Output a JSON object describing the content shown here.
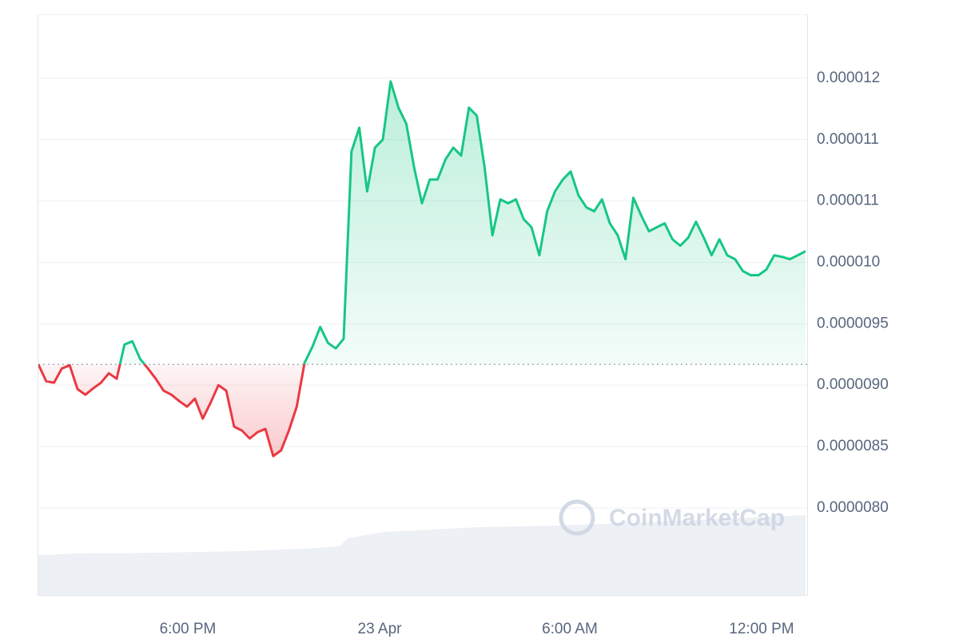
{
  "chart_data": {
    "type": "line",
    "watermark": "CoinMarketCap",
    "up_color": "#16c784",
    "down_color": "#ea3943",
    "grid": true,
    "xlim": [
      0,
      98
    ],
    "xticks": [
      {
        "value": 19.09,
        "label": "6:00 PM"
      },
      {
        "value": 43.59,
        "label": "23 Apr"
      },
      {
        "value": 67.88,
        "label": "6:00 AM"
      },
      {
        "value": 92.38,
        "label": "12:00 PM"
      }
    ],
    "ylim": [
      7.29e-06,
      1.202e-05
    ],
    "yticks": [
      {
        "value": 1.15e-05,
        "label": "0.000012"
      },
      {
        "value": 1.1e-05,
        "label": "0.000011"
      },
      {
        "value": 1.05e-05,
        "label": "0.000011"
      },
      {
        "value": 1e-05,
        "label": "0.000010"
      },
      {
        "value": 9.5e-06,
        "label": "0.0000095"
      },
      {
        "value": 9e-06,
        "label": "0.0000090"
      },
      {
        "value": 8.5e-06,
        "label": "0.0000085"
      },
      {
        "value": 8e-06,
        "label": "0.0000080"
      }
    ],
    "values": [
      9.169e-06,
      9.032e-06,
      9.02e-06,
      9.136e-06,
      9.162e-06,
      8.968e-06,
      8.922e-06,
      8.974e-06,
      9.02e-06,
      9.097e-06,
      9.052e-06,
      9.331e-06,
      9.357e-06,
      9.214e-06,
      9.136e-06,
      9.052e-06,
      8.955e-06,
      8.922e-06,
      8.87e-06,
      8.825e-06,
      8.89e-06,
      8.727e-06,
      8.857e-06,
      9e-06,
      8.955e-06,
      8.662e-06,
      8.63e-06,
      8.565e-06,
      8.617e-06,
      8.643e-06,
      8.422e-06,
      8.468e-06,
      8.63e-06,
      8.825e-06,
      9.182e-06,
      9.312e-06,
      9.474e-06,
      9.344e-06,
      9.299e-06,
      9.377e-06,
      1.0903e-05,
      1.1097e-05,
      1.0578e-05,
      1.0935e-05,
      1.1e-05,
      1.1474e-05,
      1.126e-05,
      1.113e-05,
      1.0773e-05,
      1.0481e-05,
      1.0675e-05,
      1.0675e-05,
      1.0838e-05,
      1.0935e-05,
      1.087e-05,
      1.126e-05,
      1.1195e-05,
      1.0773e-05,
      1.0221e-05,
      1.0513e-05,
      1.0481e-05,
      1.0513e-05,
      1.0351e-05,
      1.0286e-05,
      1.0058e-05,
      1.0416e-05,
      1.0578e-05,
      1.0675e-05,
      1.074e-05,
      1.0545e-05,
      1.0448e-05,
      1.0416e-05,
      1.0513e-05,
      1.0318e-05,
      1.0221e-05,
      1.0026e-05,
      1.0526e-05,
      1.0383e-05,
      1.0253e-05,
      1.0286e-05,
      1.0318e-05,
      1.0188e-05,
      1.0136e-05,
      1.0201e-05,
      1.0331e-05,
      1.0201e-05,
      1.0058e-05,
      1.0188e-05,
      1.0058e-05,
      1.0026e-05,
      9.929e-06,
      9.896e-06,
      9.896e-06,
      9.942e-06,
      1.0058e-05,
      1.0045e-05,
      1.0026e-05,
      1.0058e-05,
      1.0091e-05
    ]
  }
}
